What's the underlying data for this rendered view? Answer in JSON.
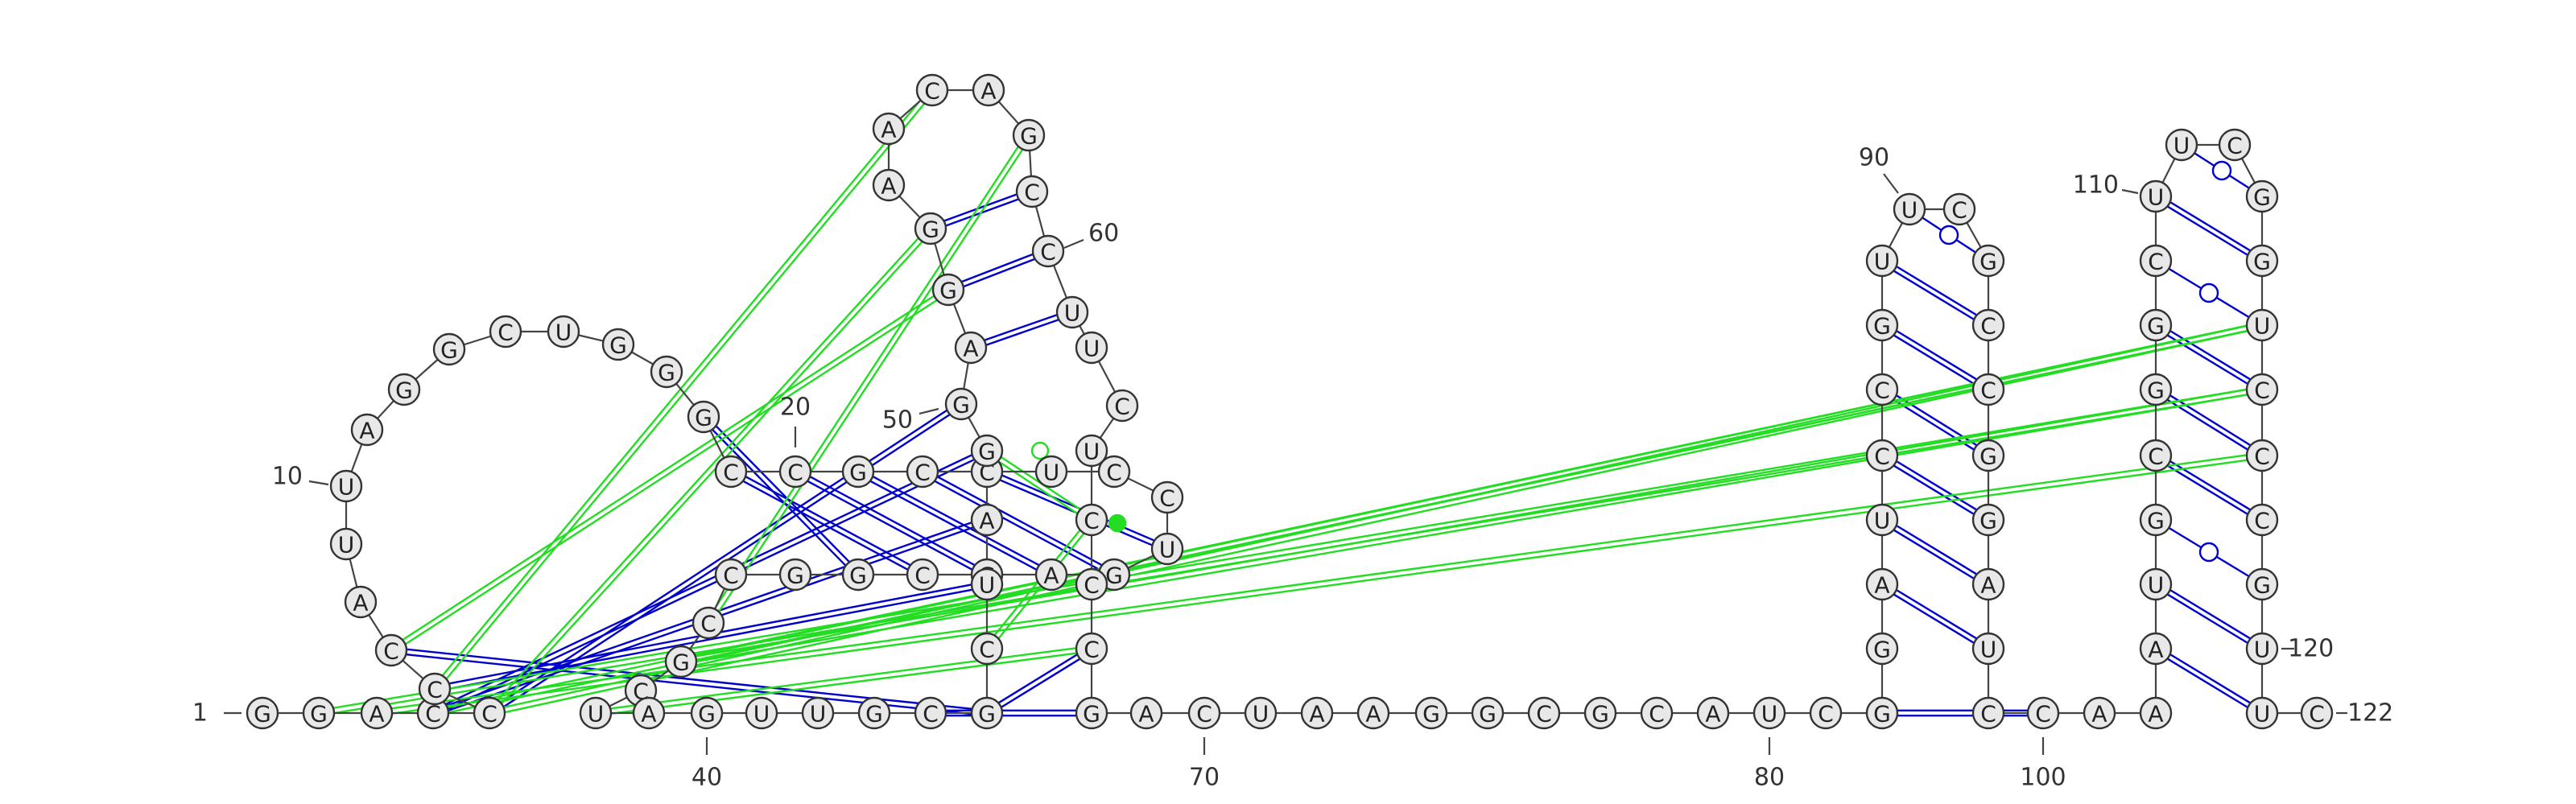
{
  "diagram": {
    "type": "rna-secondary-structure",
    "sequence_length": 122,
    "colors": {
      "canonical_pair": "#0000cc",
      "tertiary_pair": "#22dd22",
      "nucleotide_fill": "#e8e8e8",
      "nucleotide_stroke": "#333333"
    },
    "nucleotides": [
      {
        "i": 1,
        "base": "G"
      },
      {
        "i": 2,
        "base": "G"
      },
      {
        "i": 3,
        "base": "A"
      },
      {
        "i": 4,
        "base": "C"
      },
      {
        "i": 5,
        "base": "C"
      },
      {
        "i": 6,
        "base": "C"
      },
      {
        "i": 7,
        "base": "C"
      },
      {
        "i": 8,
        "base": "A"
      },
      {
        "i": 9,
        "base": "U"
      },
      {
        "i": 10,
        "base": "U"
      },
      {
        "i": 11,
        "base": "A"
      },
      {
        "i": 12,
        "base": "G"
      },
      {
        "i": 13,
        "base": "G"
      },
      {
        "i": 14,
        "base": "C"
      },
      {
        "i": 15,
        "base": "U"
      },
      {
        "i": 16,
        "base": "G"
      },
      {
        "i": 17,
        "base": "G"
      },
      {
        "i": 18,
        "base": "G"
      },
      {
        "i": 19,
        "base": "C"
      },
      {
        "i": 20,
        "base": "C"
      },
      {
        "i": 21,
        "base": "G"
      },
      {
        "i": 22,
        "base": "C"
      },
      {
        "i": 23,
        "base": "C"
      },
      {
        "i": 24,
        "base": "U"
      },
      {
        "i": 25,
        "base": "C"
      },
      {
        "i": 26,
        "base": "C"
      },
      {
        "i": 27,
        "base": "U"
      },
      {
        "i": 28,
        "base": "G"
      },
      {
        "i": 29,
        "base": "A"
      },
      {
        "i": 30,
        "base": "G"
      },
      {
        "i": 31,
        "base": "C"
      },
      {
        "i": 32,
        "base": "G"
      },
      {
        "i": 33,
        "base": "G"
      },
      {
        "i": 34,
        "base": "C"
      },
      {
        "i": 35,
        "base": "C"
      },
      {
        "i": 36,
        "base": "G"
      },
      {
        "i": 37,
        "base": "C"
      },
      {
        "i": 38,
        "base": "U"
      },
      {
        "i": 39,
        "base": "A"
      },
      {
        "i": 40,
        "base": "G"
      },
      {
        "i": 41,
        "base": "U"
      },
      {
        "i": 42,
        "base": "U"
      },
      {
        "i": 43,
        "base": "G"
      },
      {
        "i": 44,
        "base": "C"
      },
      {
        "i": 45,
        "base": "G"
      },
      {
        "i": 46,
        "base": "C"
      },
      {
        "i": 47,
        "base": "U"
      },
      {
        "i": 48,
        "base": "A"
      },
      {
        "i": 49,
        "base": "G"
      },
      {
        "i": 50,
        "base": "G"
      },
      {
        "i": 51,
        "base": "A"
      },
      {
        "i": 52,
        "base": "G"
      },
      {
        "i": 53,
        "base": "G"
      },
      {
        "i": 54,
        "base": "A"
      },
      {
        "i": 55,
        "base": "A"
      },
      {
        "i": 56,
        "base": "C"
      },
      {
        "i": 57,
        "base": "A"
      },
      {
        "i": 58,
        "base": "G"
      },
      {
        "i": 59,
        "base": "C"
      },
      {
        "i": 60,
        "base": "C"
      },
      {
        "i": 61,
        "base": "U"
      },
      {
        "i": 62,
        "base": "U"
      },
      {
        "i": 63,
        "base": "C"
      },
      {
        "i": 64,
        "base": "U"
      },
      {
        "i": 65,
        "base": "C"
      },
      {
        "i": 66,
        "base": "C"
      },
      {
        "i": 67,
        "base": "C"
      },
      {
        "i": 68,
        "base": "G"
      },
      {
        "i": 69,
        "base": "A"
      },
      {
        "i": 70,
        "base": "C"
      },
      {
        "i": 71,
        "base": "U"
      },
      {
        "i": 72,
        "base": "A"
      },
      {
        "i": 73,
        "base": "A"
      },
      {
        "i": 74,
        "base": "G"
      },
      {
        "i": 75,
        "base": "G"
      },
      {
        "i": 76,
        "base": "C"
      },
      {
        "i": 77,
        "base": "G"
      },
      {
        "i": 78,
        "base": "C"
      },
      {
        "i": 79,
        "base": "A"
      },
      {
        "i": 80,
        "base": "U"
      },
      {
        "i": 81,
        "base": "C"
      },
      {
        "i": 82,
        "base": "G"
      },
      {
        "i": 83,
        "base": "G"
      },
      {
        "i": 84,
        "base": "A"
      },
      {
        "i": 85,
        "base": "U"
      },
      {
        "i": 86,
        "base": "C"
      },
      {
        "i": 87,
        "base": "C"
      },
      {
        "i": 88,
        "base": "G"
      },
      {
        "i": 89,
        "base": "U"
      },
      {
        "i": 90,
        "base": "U"
      },
      {
        "i": 91,
        "base": "C"
      },
      {
        "i": 92,
        "base": "G"
      },
      {
        "i": 93,
        "base": "C"
      },
      {
        "i": 94,
        "base": "C"
      },
      {
        "i": 95,
        "base": "G"
      },
      {
        "i": 96,
        "base": "G"
      },
      {
        "i": 97,
        "base": "A"
      },
      {
        "i": 98,
        "base": "U"
      },
      {
        "i": 99,
        "base": "C"
      },
      {
        "i": 100,
        "base": "C"
      },
      {
        "i": 101,
        "base": "A"
      },
      {
        "i": 102,
        "base": "A"
      },
      {
        "i": 103,
        "base": "A"
      },
      {
        "i": 104,
        "base": "U"
      },
      {
        "i": 105,
        "base": "G"
      },
      {
        "i": 106,
        "base": "C"
      },
      {
        "i": 107,
        "base": "G"
      },
      {
        "i": 108,
        "base": "G"
      },
      {
        "i": 109,
        "base": "C"
      },
      {
        "i": 110,
        "base": "U"
      },
      {
        "i": 111,
        "base": "U"
      },
      {
        "i": 112,
        "base": "C"
      },
      {
        "i": 113,
        "base": "G"
      },
      {
        "i": 114,
        "base": "G"
      },
      {
        "i": 115,
        "base": "U"
      },
      {
        "i": 116,
        "base": "C"
      },
      {
        "i": 117,
        "base": "C"
      },
      {
        "i": 118,
        "base": "C"
      },
      {
        "i": 119,
        "base": "G"
      },
      {
        "i": 120,
        "base": "U"
      },
      {
        "i": 121,
        "base": "U"
      },
      {
        "i": 122,
        "base": "C"
      }
    ],
    "number_labels": [
      {
        "i": 1,
        "text": "1"
      },
      {
        "i": 10,
        "text": "10"
      },
      {
        "i": 20,
        "text": "20"
      },
      {
        "i": 40,
        "text": "40"
      },
      {
        "i": 50,
        "text": "50"
      },
      {
        "i": 60,
        "text": "60"
      },
      {
        "i": 70,
        "text": "70"
      },
      {
        "i": 80,
        "text": "80"
      },
      {
        "i": 90,
        "text": "90"
      },
      {
        "i": 100,
        "text": "100"
      },
      {
        "i": 110,
        "text": "110"
      },
      {
        "i": 120,
        "text": "120"
      },
      {
        "i": 122,
        "text": "122"
      }
    ],
    "pairs": [
      {
        "a": 18,
        "b": 32,
        "kind": "canonical"
      },
      {
        "a": 19,
        "b": 31,
        "kind": "canonical"
      },
      {
        "a": 20,
        "b": 30,
        "kind": "canonical"
      },
      {
        "a": 21,
        "b": 29,
        "kind": "canonical"
      },
      {
        "a": 22,
        "b": 28,
        "kind": "canonical"
      },
      {
        "a": 23,
        "b": 27,
        "kind": "canonical"
      },
      {
        "a": 44,
        "b": 68,
        "kind": "canonical"
      },
      {
        "a": 45,
        "b": 67,
        "kind": "canonical"
      },
      {
        "a": 46,
        "b": 65,
        "kind": "tertiary"
      },
      {
        "a": 49,
        "b": 65,
        "kind": "tertiary"
      },
      {
        "a": 51,
        "b": 61,
        "kind": "canonical"
      },
      {
        "a": 52,
        "b": 60,
        "kind": "canonical"
      },
      {
        "a": 53,
        "b": 59,
        "kind": "canonical"
      },
      {
        "a": 82,
        "b": 100,
        "kind": "canonical"
      },
      {
        "a": 84,
        "b": 98,
        "kind": "canonical"
      },
      {
        "a": 85,
        "b": 97,
        "kind": "canonical"
      },
      {
        "a": 86,
        "b": 96,
        "kind": "canonical"
      },
      {
        "a": 87,
        "b": 95,
        "kind": "canonical"
      },
      {
        "a": 88,
        "b": 94,
        "kind": "canonical"
      },
      {
        "a": 89,
        "b": 93,
        "kind": "canonical"
      },
      {
        "a": 90,
        "b": 92,
        "kind": "noncanonical"
      },
      {
        "a": 103,
        "b": 121,
        "kind": "canonical"
      },
      {
        "a": 104,
        "b": 120,
        "kind": "canonical"
      },
      {
        "a": 105,
        "b": 119,
        "kind": "noncanonical"
      },
      {
        "a": 106,
        "b": 118,
        "kind": "canonical"
      },
      {
        "a": 107,
        "b": 117,
        "kind": "canonical"
      },
      {
        "a": 108,
        "b": 116,
        "kind": "canonical"
      },
      {
        "a": 109,
        "b": 115,
        "kind": "noncanonical"
      },
      {
        "a": 110,
        "b": 114,
        "kind": "canonical"
      },
      {
        "a": 111,
        "b": 113,
        "kind": "noncanonical"
      },
      {
        "a": 7,
        "b": 45,
        "kind": "canonical"
      },
      {
        "a": 6,
        "b": 47,
        "kind": "canonical"
      },
      {
        "a": 4,
        "b": 49,
        "kind": "canonical"
      },
      {
        "a": 4,
        "b": 48,
        "kind": "canonical"
      },
      {
        "a": 5,
        "b": 50,
        "kind": "canonical"
      },
      {
        "a": 2,
        "b": 116,
        "kind": "tertiary"
      },
      {
        "a": 3,
        "b": 117,
        "kind": "tertiary"
      },
      {
        "a": 4,
        "b": 115,
        "kind": "tertiary"
      },
      {
        "a": 5,
        "b": 115,
        "kind": "tertiary"
      },
      {
        "a": 36,
        "b": 115,
        "kind": "tertiary"
      },
      {
        "a": 6,
        "b": 56,
        "kind": "tertiary"
      },
      {
        "a": 5,
        "b": 53,
        "kind": "tertiary"
      },
      {
        "a": 7,
        "b": 52,
        "kind": "tertiary"
      },
      {
        "a": 35,
        "b": 58,
        "kind": "tertiary"
      },
      {
        "a": 38,
        "b": 67,
        "kind": "tertiary"
      },
      {
        "a": 36,
        "b": 116,
        "kind": "tertiary"
      }
    ]
  }
}
